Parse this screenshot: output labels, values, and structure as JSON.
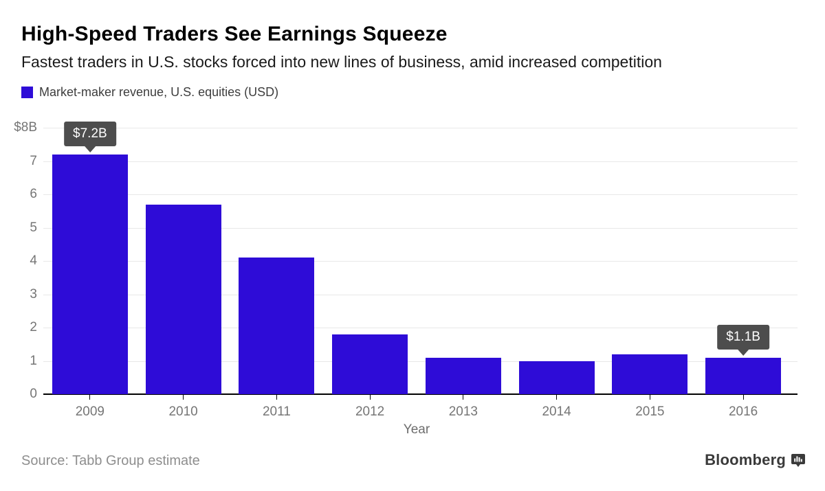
{
  "header": {
    "title": "High-Speed Traders See Earnings Squeeze",
    "subtitle": "Fastest traders in U.S. stocks forced into new lines of business, amid increased competition"
  },
  "legend": {
    "label": "Market-maker revenue, U.S. equities (USD)",
    "swatch_color": "#2E0CD7"
  },
  "chart_data": {
    "type": "bar",
    "title": "Market-maker revenue, U.S. equities (USD)",
    "categories": [
      "2009",
      "2010",
      "2011",
      "2012",
      "2013",
      "2014",
      "2015",
      "2016"
    ],
    "values": [
      7.2,
      5.7,
      4.1,
      1.8,
      1.1,
      1.0,
      1.2,
      1.1
    ],
    "xlabel": "Year",
    "ylabel": "",
    "ylim": [
      0,
      8
    ],
    "yticks": [
      {
        "value": 8,
        "label": "$8B"
      },
      {
        "value": 7,
        "label": "7"
      },
      {
        "value": 6,
        "label": "6"
      },
      {
        "value": 5,
        "label": "5"
      },
      {
        "value": 4,
        "label": "4"
      },
      {
        "value": 3,
        "label": "3"
      },
      {
        "value": 2,
        "label": "2"
      },
      {
        "value": 1,
        "label": "1"
      },
      {
        "value": 0,
        "label": "0"
      }
    ],
    "grid": "horizontal",
    "legend_position": "top-left",
    "bar_color": "#2E0CD7",
    "gridline_color": "#e8e8e8",
    "tooltip_color": "#4d4d4d",
    "annotations": [
      {
        "category": "2009",
        "label": "$7.2B"
      },
      {
        "category": "2016",
        "label": "$1.1B"
      }
    ]
  },
  "footer": {
    "source": "Source: Tabb Group estimate",
    "brand": "Bloomberg"
  }
}
